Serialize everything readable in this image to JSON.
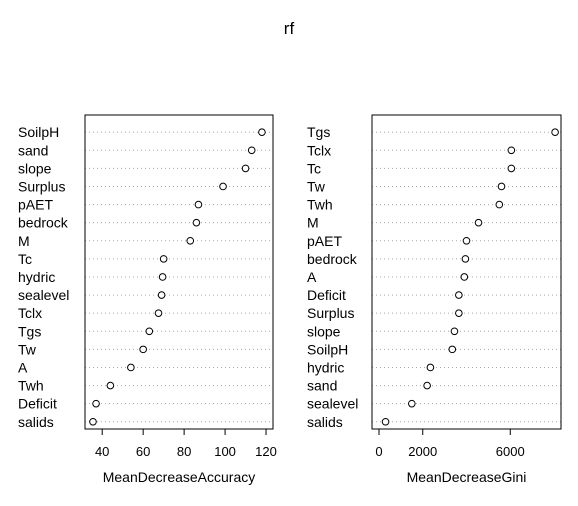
{
  "chart_data": {
    "type": "scatter",
    "title": "rf",
    "panels": [
      {
        "xlabel": "MeanDecreaseAccuracy",
        "xlim": [
          35,
          120
        ],
        "xticks": [
          40,
          60,
          80,
          100,
          120
        ],
        "categories": [
          "SoilpH",
          "sand",
          "slope",
          "Surplus",
          "pAET",
          "bedrock",
          "M",
          "Tc",
          "hydric",
          "sealevel",
          "Tclx",
          "Tgs",
          "Tw",
          "A",
          "Twh",
          "Deficit",
          "salids"
        ],
        "values": [
          118,
          113,
          110,
          99,
          87,
          86,
          83,
          70,
          69.5,
          69,
          67.5,
          63,
          60,
          54,
          44,
          37,
          35.5
        ]
      },
      {
        "xlabel": "MeanDecreaseGini",
        "xlim": [
          0,
          8000
        ],
        "xticks": [
          0,
          2000,
          6000
        ],
        "categories": [
          "Tgs",
          "Tclx",
          "Tc",
          "Tw",
          "Twh",
          "M",
          "pAET",
          "bedrock",
          "A",
          "Deficit",
          "Surplus",
          "slope",
          "SoilpH",
          "hydric",
          "sand",
          "sealevel",
          "salids"
        ],
        "values": [
          8050,
          6050,
          6050,
          5600,
          5500,
          4550,
          4000,
          3950,
          3900,
          3650,
          3650,
          3450,
          3350,
          2350,
          2200,
          1500,
          300
        ]
      }
    ],
    "grid": "dotted horizontal lines",
    "legend": "none"
  }
}
